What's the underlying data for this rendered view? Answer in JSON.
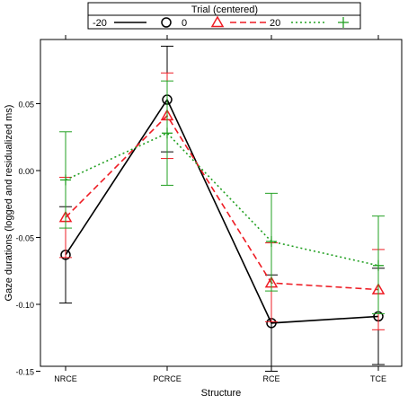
{
  "chart_data": {
    "type": "line",
    "title": "",
    "xlabel": "Structure",
    "ylabel": "Gaze durations (logged and residualized ms)",
    "categories": [
      "NRCE",
      "PCRCE",
      "RCE",
      "TCE"
    ],
    "ylim": [
      -0.155,
      0.095
    ],
    "yticks": [
      0.05,
      0.0,
      -0.05,
      -0.1,
      -0.15
    ],
    "ytick_labels": [
      "0.05",
      "0.00",
      "-0.05",
      "-0.10",
      "-0.15"
    ],
    "grid": false,
    "legend": {
      "title": "Trial (centered)",
      "placement": "top",
      "entries": [
        "-20",
        "0",
        "20"
      ]
    },
    "series": [
      {
        "name": "-20",
        "color": "#000000",
        "line_style": "solid",
        "marker": "circle",
        "values": [
          -0.063,
          0.053,
          -0.114,
          -0.109
        ],
        "lower": [
          -0.099,
          0.014,
          -0.15,
          -0.145
        ],
        "upper": [
          -0.027,
          0.093,
          -0.078,
          -0.073
        ]
      },
      {
        "name": "0",
        "color": "#ee1c24",
        "line_style": "dashed",
        "marker": "triangle",
        "values": [
          -0.035,
          0.041,
          -0.084,
          -0.089
        ],
        "lower": [
          -0.065,
          0.009,
          -0.113,
          -0.119
        ],
        "upper": [
          -0.005,
          0.073,
          -0.054,
          -0.059
        ]
      },
      {
        "name": "20",
        "color": "#22a022",
        "line_style": "dotted",
        "marker": "plus",
        "values": [
          -0.007,
          0.028,
          -0.053,
          -0.071
        ],
        "lower": [
          -0.043,
          -0.011,
          -0.09,
          -0.107
        ],
        "upper": [
          0.029,
          0.067,
          -0.017,
          -0.034
        ]
      }
    ]
  }
}
